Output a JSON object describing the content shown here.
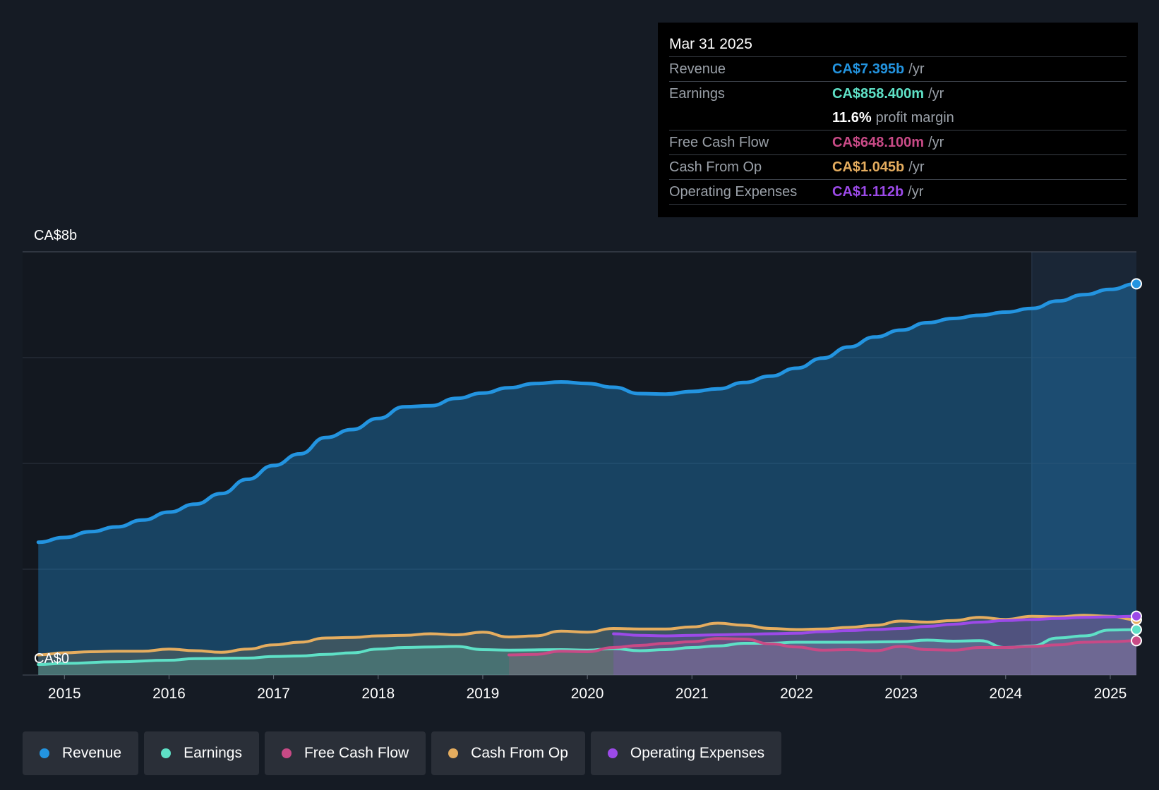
{
  "chart_data": {
    "type": "line",
    "title": "",
    "ylabel_top": "CA$8b",
    "ylabel_bottom": "CA$0",
    "ylim": [
      0,
      8
    ],
    "xlim": [
      2014.6,
      2025.25
    ],
    "x_ticks": [
      "2015",
      "2016",
      "2017",
      "2018",
      "2019",
      "2020",
      "2021",
      "2022",
      "2023",
      "2024",
      "2025"
    ],
    "series": [
      {
        "name": "Revenue",
        "color": "#2394e0",
        "points": [
          [
            2014.75,
            2.51
          ],
          [
            2015.0,
            2.6
          ],
          [
            2015.25,
            2.71
          ],
          [
            2015.5,
            2.8
          ],
          [
            2015.75,
            2.93
          ],
          [
            2016.0,
            3.08
          ],
          [
            2016.25,
            3.23
          ],
          [
            2016.5,
            3.43
          ],
          [
            2016.75,
            3.7
          ],
          [
            2017.0,
            3.96
          ],
          [
            2017.25,
            4.18
          ],
          [
            2017.5,
            4.49
          ],
          [
            2017.75,
            4.64
          ],
          [
            2018.0,
            4.85
          ],
          [
            2018.25,
            5.07
          ],
          [
            2018.5,
            5.09
          ],
          [
            2018.75,
            5.23
          ],
          [
            2019.0,
            5.33
          ],
          [
            2019.25,
            5.43
          ],
          [
            2019.5,
            5.51
          ],
          [
            2019.75,
            5.54
          ],
          [
            2020.0,
            5.51
          ],
          [
            2020.25,
            5.44
          ],
          [
            2020.5,
            5.32
          ],
          [
            2020.75,
            5.31
          ],
          [
            2021.0,
            5.36
          ],
          [
            2021.25,
            5.41
          ],
          [
            2021.5,
            5.53
          ],
          [
            2021.75,
            5.65
          ],
          [
            2022.0,
            5.8
          ],
          [
            2022.25,
            5.99
          ],
          [
            2022.5,
            6.2
          ],
          [
            2022.75,
            6.39
          ],
          [
            2023.0,
            6.52
          ],
          [
            2023.25,
            6.66
          ],
          [
            2023.5,
            6.74
          ],
          [
            2023.75,
            6.8
          ],
          [
            2024.0,
            6.86
          ],
          [
            2024.25,
            6.93
          ],
          [
            2024.5,
            7.07
          ],
          [
            2024.75,
            7.19
          ],
          [
            2025.0,
            7.29
          ],
          [
            2025.25,
            7.395
          ]
        ]
      },
      {
        "name": "Earnings",
        "color": "#5ee0c6",
        "points": [
          [
            2014.75,
            0.2
          ],
          [
            2015.0,
            0.22
          ],
          [
            2015.5,
            0.25
          ],
          [
            2016.0,
            0.28
          ],
          [
            2016.25,
            0.31
          ],
          [
            2016.75,
            0.32
          ],
          [
            2017.0,
            0.35
          ],
          [
            2017.25,
            0.36
          ],
          [
            2017.5,
            0.39
          ],
          [
            2017.75,
            0.42
          ],
          [
            2018.0,
            0.49
          ],
          [
            2018.25,
            0.52
          ],
          [
            2018.5,
            0.53
          ],
          [
            2018.75,
            0.54
          ],
          [
            2019.0,
            0.48
          ],
          [
            2019.25,
            0.47
          ],
          [
            2019.75,
            0.48
          ],
          [
            2020.0,
            0.47
          ],
          [
            2020.25,
            0.5
          ],
          [
            2020.5,
            0.46
          ],
          [
            2020.75,
            0.48
          ],
          [
            2021.0,
            0.52
          ],
          [
            2021.25,
            0.55
          ],
          [
            2021.5,
            0.6
          ],
          [
            2021.75,
            0.6
          ],
          [
            2022.0,
            0.62
          ],
          [
            2022.5,
            0.62
          ],
          [
            2023.0,
            0.63
          ],
          [
            2023.25,
            0.66
          ],
          [
            2023.5,
            0.64
          ],
          [
            2023.75,
            0.65
          ],
          [
            2024.0,
            0.52
          ],
          [
            2024.25,
            0.55
          ],
          [
            2024.5,
            0.7
          ],
          [
            2024.75,
            0.74
          ],
          [
            2025.0,
            0.85
          ],
          [
            2025.25,
            0.8584
          ]
        ]
      },
      {
        "name": "Free Cash Flow",
        "color": "#c84a86",
        "points": [
          [
            2019.25,
            0.38
          ],
          [
            2019.5,
            0.39
          ],
          [
            2019.75,
            0.45
          ],
          [
            2020.0,
            0.44
          ],
          [
            2020.25,
            0.52
          ],
          [
            2020.5,
            0.56
          ],
          [
            2020.75,
            0.6
          ],
          [
            2021.0,
            0.63
          ],
          [
            2021.25,
            0.69
          ],
          [
            2021.5,
            0.68
          ],
          [
            2021.75,
            0.59
          ],
          [
            2022.0,
            0.53
          ],
          [
            2022.25,
            0.47
          ],
          [
            2022.5,
            0.48
          ],
          [
            2022.75,
            0.46
          ],
          [
            2023.0,
            0.54
          ],
          [
            2023.25,
            0.48
          ],
          [
            2023.5,
            0.47
          ],
          [
            2023.75,
            0.52
          ],
          [
            2024.0,
            0.52
          ],
          [
            2024.25,
            0.54
          ],
          [
            2024.5,
            0.57
          ],
          [
            2024.75,
            0.62
          ],
          [
            2025.0,
            0.63
          ],
          [
            2025.25,
            0.6481
          ]
        ]
      },
      {
        "name": "Cash From Op",
        "color": "#e5ad5f",
        "points": [
          [
            2014.75,
            0.38
          ],
          [
            2015.0,
            0.42
          ],
          [
            2015.25,
            0.44
          ],
          [
            2015.5,
            0.45
          ],
          [
            2015.75,
            0.45
          ],
          [
            2016.0,
            0.49
          ],
          [
            2016.25,
            0.46
          ],
          [
            2016.5,
            0.43
          ],
          [
            2016.75,
            0.49
          ],
          [
            2017.0,
            0.57
          ],
          [
            2017.25,
            0.62
          ],
          [
            2017.5,
            0.7
          ],
          [
            2017.75,
            0.71
          ],
          [
            2018.0,
            0.74
          ],
          [
            2018.25,
            0.75
          ],
          [
            2018.5,
            0.78
          ],
          [
            2018.75,
            0.76
          ],
          [
            2019.0,
            0.81
          ],
          [
            2019.25,
            0.72
          ],
          [
            2019.5,
            0.74
          ],
          [
            2019.75,
            0.83
          ],
          [
            2020.0,
            0.81
          ],
          [
            2020.25,
            0.88
          ],
          [
            2020.5,
            0.87
          ],
          [
            2020.75,
            0.87
          ],
          [
            2021.0,
            0.91
          ],
          [
            2021.25,
            0.98
          ],
          [
            2021.5,
            0.94
          ],
          [
            2021.75,
            0.88
          ],
          [
            2022.0,
            0.86
          ],
          [
            2022.25,
            0.87
          ],
          [
            2022.5,
            0.9
          ],
          [
            2022.75,
            0.94
          ],
          [
            2023.0,
            1.02
          ],
          [
            2023.25,
            1.0
          ],
          [
            2023.5,
            1.03
          ],
          [
            2023.75,
            1.09
          ],
          [
            2024.0,
            1.05
          ],
          [
            2024.25,
            1.11
          ],
          [
            2024.5,
            1.1
          ],
          [
            2024.75,
            1.13
          ],
          [
            2025.0,
            1.11
          ],
          [
            2025.25,
            1.045
          ]
        ]
      },
      {
        "name": "Operating Expenses",
        "color": "#9c4ae8",
        "points": [
          [
            2020.25,
            0.78
          ],
          [
            2020.5,
            0.75
          ],
          [
            2020.75,
            0.74
          ],
          [
            2021.0,
            0.75
          ],
          [
            2021.25,
            0.76
          ],
          [
            2021.5,
            0.77
          ],
          [
            2021.75,
            0.78
          ],
          [
            2022.0,
            0.79
          ],
          [
            2022.25,
            0.82
          ],
          [
            2022.5,
            0.84
          ],
          [
            2022.75,
            0.86
          ],
          [
            2023.0,
            0.88
          ],
          [
            2023.25,
            0.92
          ],
          [
            2023.5,
            0.96
          ],
          [
            2023.75,
            1.0
          ],
          [
            2024.0,
            1.03
          ],
          [
            2024.25,
            1.05
          ],
          [
            2024.5,
            1.07
          ],
          [
            2024.75,
            1.09
          ],
          [
            2025.0,
            1.1
          ],
          [
            2025.25,
            1.112
          ]
        ]
      }
    ],
    "highlight_region_start": 2024.25
  },
  "tooltip": {
    "date": "Mar 31 2025",
    "rows": [
      {
        "label": "Revenue",
        "value": "CA$7.395b",
        "unit": "/yr",
        "color": "#2394e0"
      },
      {
        "label": "Earnings",
        "value": "CA$858.400m",
        "unit": "/yr",
        "color": "#5ee0c6"
      },
      {
        "label": "",
        "value": "11.6%",
        "unit": "profit margin",
        "color": "#ffffff"
      },
      {
        "label": "Free Cash Flow",
        "value": "CA$648.100m",
        "unit": "/yr",
        "color": "#c84a86"
      },
      {
        "label": "Cash From Op",
        "value": "CA$1.045b",
        "unit": "/yr",
        "color": "#e5ad5f"
      },
      {
        "label": "Operating Expenses",
        "value": "CA$1.112b",
        "unit": "/yr",
        "color": "#9c4ae8"
      }
    ]
  },
  "legend": [
    {
      "label": "Revenue",
      "color": "#2394e0"
    },
    {
      "label": "Earnings",
      "color": "#5ee0c6"
    },
    {
      "label": "Free Cash Flow",
      "color": "#c84a86"
    },
    {
      "label": "Cash From Op",
      "color": "#e5ad5f"
    },
    {
      "label": "Operating Expenses",
      "color": "#9c4ae8"
    }
  ]
}
